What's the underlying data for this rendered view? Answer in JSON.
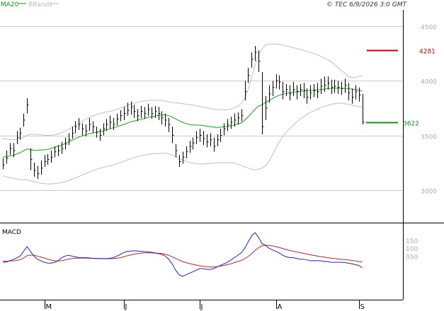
{
  "header": {
    "legend": [
      {
        "label": "MA20",
        "color": "#0f9d0f"
      },
      {
        "label": "BBands",
        "color": "#bbbbbb"
      }
    ],
    "copyright": "© TEC 6/9/2026 3:0 GMT"
  },
  "chart_data": {
    "type": "candlestick",
    "price_axis": {
      "ticks": [
        3000,
        3500,
        4000,
        4500
      ],
      "tick_labels": [
        "3000",
        "3500",
        "4000",
        "4500"
      ],
      "range": [
        2700,
        4650
      ]
    },
    "months": [
      {
        "label": "M",
        "day": 12
      },
      {
        "label": "J",
        "day": 35
      },
      {
        "label": "J",
        "day": 57
      },
      {
        "label": "A",
        "day": 79
      },
      {
        "label": "S",
        "day": 103
      }
    ],
    "close": [
      3230,
      3290,
      3380,
      3360,
      3480,
      3520,
      3640,
      3780,
      3280,
      3180,
      3150,
      3200,
      3260,
      3280,
      3300,
      3350,
      3360,
      3380,
      3420,
      3460,
      3520,
      3580,
      3600,
      3560,
      3540,
      3600,
      3580,
      3530,
      3500,
      3560,
      3600,
      3620,
      3600,
      3650,
      3680,
      3700,
      3730,
      3760,
      3720,
      3680,
      3720,
      3700,
      3740,
      3700,
      3720,
      3700,
      3660,
      3640,
      3600,
      3500,
      3360,
      3260,
      3300,
      3350,
      3400,
      3430,
      3480,
      3500,
      3470,
      3440,
      3460,
      3400,
      3460,
      3500,
      3560,
      3600,
      3620,
      3640,
      3660,
      3680,
      3900,
      4050,
      4200,
      4260,
      4180,
      3580,
      3750,
      3880,
      3940,
      4000,
      3990,
      3900,
      3920,
      3880,
      3920,
      3900,
      3920,
      3910,
      3850,
      3890,
      3910,
      3900,
      3950,
      3960,
      3980,
      3940,
      3950,
      3940,
      3930,
      3960,
      3890,
      3850,
      3900,
      3870,
      3622
    ],
    "high": [
      3290,
      3360,
      3430,
      3430,
      3540,
      3570,
      3700,
      3840,
      3380,
      3250,
      3220,
      3270,
      3320,
      3330,
      3360,
      3400,
      3410,
      3440,
      3480,
      3520,
      3580,
      3630,
      3660,
      3610,
      3600,
      3660,
      3630,
      3580,
      3560,
      3610,
      3650,
      3680,
      3660,
      3700,
      3730,
      3760,
      3800,
      3810,
      3780,
      3740,
      3770,
      3760,
      3790,
      3760,
      3770,
      3760,
      3720,
      3700,
      3660,
      3580,
      3420,
      3320,
      3350,
      3400,
      3450,
      3480,
      3540,
      3560,
      3540,
      3510,
      3520,
      3480,
      3510,
      3560,
      3610,
      3650,
      3670,
      3700,
      3710,
      3740,
      4000,
      4120,
      4260,
      4320,
      4280,
      4080,
      3860,
      3960,
      4000,
      4060,
      4050,
      3990,
      3970,
      3960,
      3990,
      3960,
      3970,
      3980,
      3930,
      3960,
      3970,
      3980,
      4020,
      4040,
      4040,
      4010,
      4010,
      4000,
      3990,
      4020,
      3980,
      3930,
      3960,
      3940,
      3880
    ],
    "low": [
      3190,
      3240,
      3320,
      3300,
      3420,
      3460,
      3580,
      3700,
      3180,
      3120,
      3100,
      3140,
      3210,
      3230,
      3250,
      3300,
      3310,
      3330,
      3370,
      3410,
      3470,
      3520,
      3550,
      3500,
      3490,
      3540,
      3520,
      3480,
      3450,
      3500,
      3540,
      3560,
      3550,
      3590,
      3630,
      3640,
      3680,
      3690,
      3660,
      3630,
      3660,
      3650,
      3680,
      3650,
      3660,
      3640,
      3600,
      3580,
      3530,
      3430,
      3300,
      3210,
      3240,
      3290,
      3340,
      3370,
      3420,
      3440,
      3410,
      3390,
      3400,
      3350,
      3400,
      3440,
      3500,
      3540,
      3560,
      3580,
      3600,
      3630,
      3820,
      3980,
      4120,
      4180,
      4080,
      3510,
      3640,
      3800,
      3860,
      3930,
      3920,
      3830,
      3860,
      3820,
      3860,
      3830,
      3860,
      3840,
      3790,
      3830,
      3850,
      3840,
      3880,
      3900,
      3920,
      3880,
      3890,
      3880,
      3870,
      3890,
      3820,
      3790,
      3830,
      3810,
      3600
    ],
    "ma20": [
      3300,
      3305,
      3310,
      3318,
      3330,
      3342,
      3358,
      3375,
      3370,
      3364,
      3362,
      3365,
      3368,
      3372,
      3380,
      3390,
      3400,
      3410,
      3425,
      3440,
      3455,
      3470,
      3485,
      3495,
      3505,
      3515,
      3522,
      3528,
      3535,
      3540,
      3550,
      3560,
      3570,
      3580,
      3590,
      3600,
      3612,
      3625,
      3630,
      3640,
      3648,
      3655,
      3665,
      3670,
      3676,
      3682,
      3686,
      3688,
      3680,
      3668,
      3652,
      3635,
      3620,
      3608,
      3600,
      3596,
      3594,
      3594,
      3590,
      3584,
      3580,
      3576,
      3572,
      3575,
      3578,
      3583,
      3588,
      3596,
      3604,
      3614,
      3640,
      3670,
      3705,
      3740,
      3768,
      3780,
      3800,
      3818,
      3836,
      3854,
      3868,
      3876,
      3884,
      3890,
      3896,
      3900,
      3904,
      3908,
      3910,
      3912,
      3914,
      3916,
      3920,
      3924,
      3928,
      3930,
      3932,
      3932,
      3931,
      3930,
      3928,
      3924,
      3920,
      3915,
      3905
    ],
    "bb_upper": [
      3470,
      3465,
      3462,
      3460,
      3462,
      3468,
      3480,
      3500,
      3510,
      3510,
      3508,
      3505,
      3500,
      3498,
      3500,
      3506,
      3514,
      3524,
      3538,
      3554,
      3572,
      3592,
      3612,
      3630,
      3648,
      3664,
      3678,
      3690,
      3700,
      3708,
      3714,
      3720,
      3728,
      3738,
      3750,
      3762,
      3774,
      3786,
      3796,
      3804,
      3810,
      3816,
      3820,
      3822,
      3822,
      3820,
      3818,
      3814,
      3808,
      3802,
      3798,
      3794,
      3790,
      3786,
      3782,
      3776,
      3770,
      3764,
      3758,
      3752,
      3746,
      3740,
      3736,
      3734,
      3734,
      3736,
      3742,
      3752,
      3768,
      3790,
      3840,
      3920,
      4030,
      4140,
      4240,
      4290,
      4330,
      4335,
      4338,
      4338,
      4334,
      4328,
      4320,
      4312,
      4304,
      4296,
      4288,
      4280,
      4270,
      4260,
      4250,
      4240,
      4225,
      4210,
      4195,
      4175,
      4150,
      4120,
      4090,
      4070,
      4040,
      4030,
      4030,
      4040,
      4050
    ],
    "bb_lower": [
      3130,
      3120,
      3112,
      3106,
      3100,
      3096,
      3094,
      3092,
      3085,
      3075,
      3068,
      3062,
      3058,
      3055,
      3055,
      3058,
      3062,
      3068,
      3076,
      3086,
      3098,
      3110,
      3124,
      3136,
      3150,
      3164,
      3176,
      3188,
      3198,
      3206,
      3214,
      3222,
      3230,
      3240,
      3250,
      3262,
      3274,
      3286,
      3296,
      3306,
      3314,
      3320,
      3326,
      3330,
      3332,
      3334,
      3336,
      3336,
      3330,
      3318,
      3302,
      3288,
      3275,
      3262,
      3252,
      3245,
      3240,
      3238,
      3238,
      3240,
      3243,
      3246,
      3248,
      3250,
      3250,
      3250,
      3248,
      3244,
      3236,
      3226,
      3212,
      3200,
      3190,
      3185,
      3190,
      3200,
      3220,
      3260,
      3320,
      3380,
      3440,
      3490,
      3530,
      3560,
      3590,
      3620,
      3650,
      3670,
      3690,
      3710,
      3725,
      3740,
      3755,
      3765,
      3775,
      3785,
      3790,
      3795,
      3795,
      3790,
      3785,
      3778,
      3770,
      3765,
      3760
    ],
    "price_labels": [
      {
        "text": "4281",
        "value": 4281,
        "color": "#cc0000"
      },
      {
        "text": "3622",
        "value": 3622,
        "color": "#119911"
      }
    ],
    "macd": {
      "title": "MACD",
      "tick_labels": [
        "150",
        "100",
        "050"
      ],
      "tick_values": [
        150,
        100,
        50
      ],
      "range": [
        -220,
        250
      ],
      "macd_color": "#2222cc",
      "signal_color": "#cc2222",
      "macd_values": [
        10,
        12,
        20,
        28,
        38,
        50,
        80,
        110,
        80,
        50,
        30,
        20,
        10,
        5,
        5,
        10,
        20,
        40,
        50,
        55,
        50,
        45,
        40,
        40,
        40,
        38,
        36,
        35,
        34,
        34,
        34,
        36,
        40,
        50,
        60,
        72,
        80,
        82,
        84,
        82,
        80,
        78,
        76,
        74,
        70,
        66,
        60,
        50,
        30,
        0,
        -40,
        -70,
        -80,
        -70,
        -60,
        -50,
        -40,
        -30,
        -30,
        -35,
        -35,
        -30,
        -20,
        -10,
        0,
        10,
        25,
        40,
        55,
        70,
        100,
        140,
        180,
        200,
        170,
        130,
        120,
        100,
        90,
        80,
        70,
        55,
        45,
        40,
        40,
        35,
        30,
        30,
        25,
        20,
        20,
        20,
        20,
        15,
        15,
        10,
        10,
        10,
        10,
        8,
        5,
        0,
        -5,
        -10,
        -25
      ],
      "signal_values": [
        18,
        17,
        18,
        19,
        22,
        27,
        37,
        52,
        56,
        55,
        50,
        44,
        37,
        30,
        24,
        20,
        18,
        20,
        25,
        30,
        34,
        36,
        37,
        37,
        37,
        36,
        35,
        34,
        33,
        33,
        33,
        33,
        34,
        36,
        40,
        45,
        52,
        57,
        62,
        66,
        68,
        70,
        70,
        70,
        69,
        68,
        66,
        62,
        55,
        45,
        35,
        25,
        15,
        8,
        2,
        -3,
        -8,
        -12,
        -15,
        -18,
        -20,
        -20,
        -18,
        -14,
        -10,
        -5,
        0,
        8,
        15,
        22,
        33,
        47,
        65,
        85,
        103,
        115,
        118,
        118,
        115,
        110,
        105,
        98,
        92,
        86,
        82,
        76,
        72,
        67,
        63,
        58,
        54,
        50,
        46,
        43,
        40,
        36,
        34,
        31,
        29,
        27,
        25,
        22,
        19,
        15,
        12
      ]
    },
    "months_labels_note": ""
  }
}
